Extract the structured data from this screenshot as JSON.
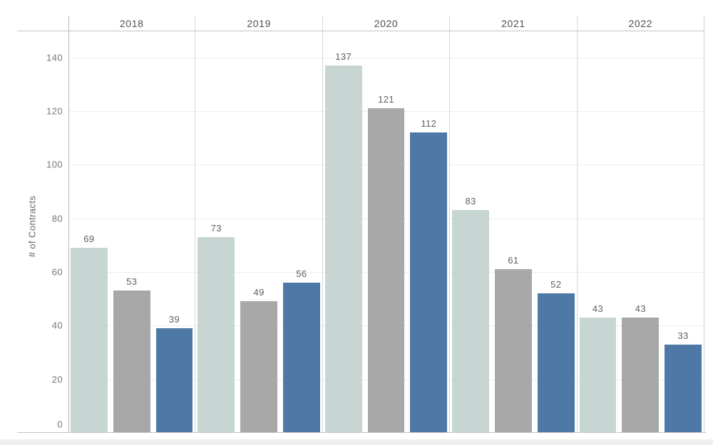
{
  "chart_data": {
    "type": "bar",
    "title": "",
    "ylabel": "# of Contracts",
    "xlabel": "",
    "categories": [
      "2018",
      "2019",
      "2020",
      "2021",
      "2022"
    ],
    "series": [
      {
        "name": "light-teal",
        "color": "#c7d6d3",
        "values": [
          69,
          73,
          137,
          83,
          43
        ]
      },
      {
        "name": "gray",
        "color": "#a8a8a8",
        "values": [
          53,
          49,
          121,
          61,
          43
        ]
      },
      {
        "name": "blue",
        "color": "#4e79a7",
        "values": [
          39,
          56,
          112,
          52,
          33
        ]
      }
    ],
    "y_ticks": [
      0,
      20,
      40,
      60,
      80,
      100,
      120,
      140
    ],
    "ylim": [
      0,
      150
    ],
    "grid": "horizontal",
    "legend": "none",
    "bar_labels": true,
    "panel_layout": "grouped-by-year-columns"
  }
}
